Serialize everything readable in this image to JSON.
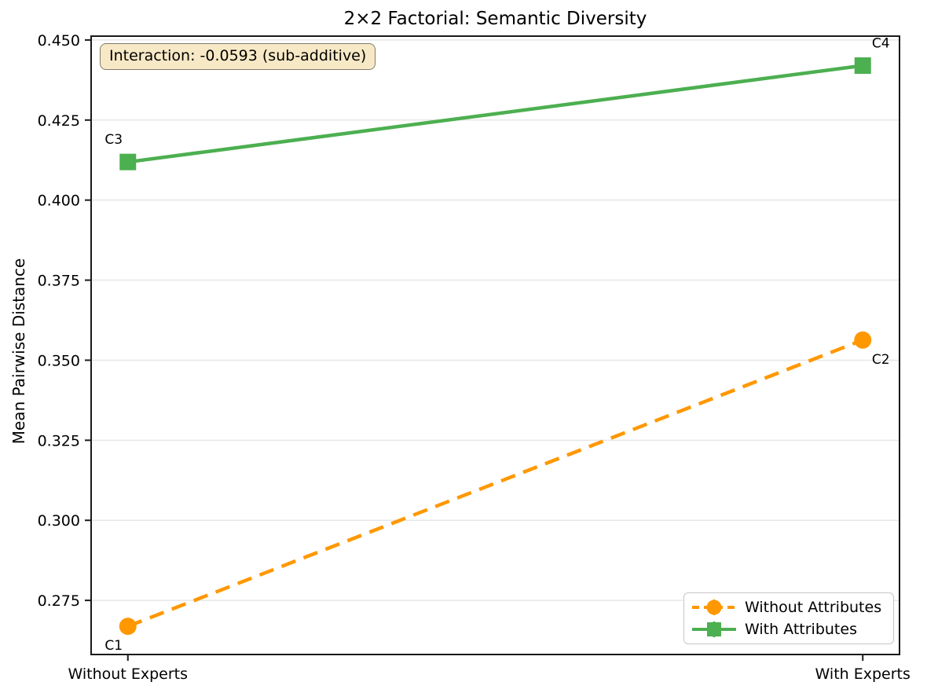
{
  "chart_data": {
    "type": "line",
    "title": "2×2 Factorial: Semantic Diversity",
    "ylabel": "Mean Pairwise Distance",
    "xlabel": "",
    "categories": [
      "Without Experts",
      "With Experts"
    ],
    "series": [
      {
        "name": "Without Attributes",
        "values": [
          0.2669,
          0.3563
        ],
        "point_labels": [
          "C1",
          "C2"
        ],
        "label_positions": [
          "below-left",
          "below-right"
        ],
        "color": "#FF9800",
        "line_style": "dashed",
        "marker": "circle"
      },
      {
        "name": "With Attributes",
        "values": [
          0.4119,
          0.442
        ],
        "point_labels": [
          "C3",
          "C4"
        ],
        "label_positions": [
          "above-left",
          "above-right"
        ],
        "color": "#4CAF50",
        "line_style": "solid",
        "marker": "square"
      }
    ],
    "y_ticks": [
      0.45,
      0.425,
      0.4,
      0.375,
      0.35,
      0.325,
      0.3,
      0.275
    ],
    "y_tick_decimals": 3,
    "ylim": [
      0.2581,
      0.4512
    ],
    "xlim": [
      -0.05,
      1.05
    ],
    "grid": "horizontal",
    "legend_position": "lower-right",
    "annotation": "Interaction: -0.0593 (sub-additive)"
  },
  "colors": {
    "grid": "#e7e7e7",
    "spine": "#1a1a1a",
    "text": "#000000",
    "annotation_bg": "#f8e9c6",
    "annotation_border": "#7e7d6d",
    "legend_border": "#c6c6c6"
  }
}
